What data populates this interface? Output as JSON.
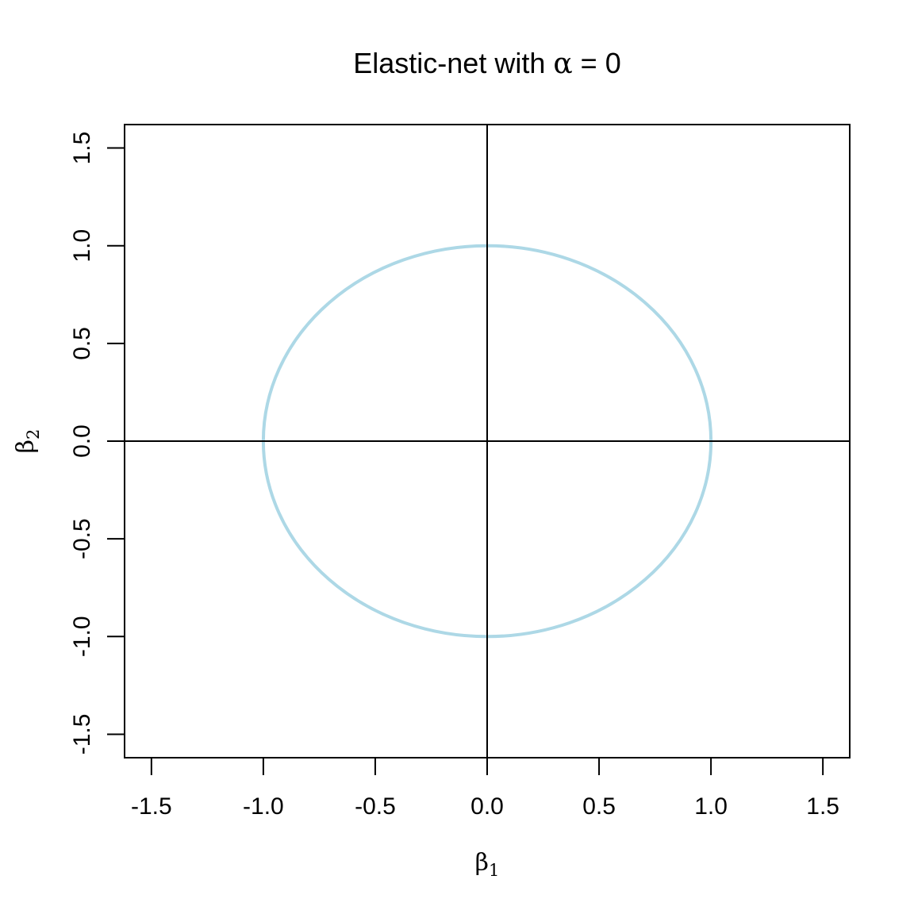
{
  "chart_data": {
    "type": "line",
    "title_prefix": "Elastic-net with ",
    "title_symbol": "α",
    "title_suffix": " = 0",
    "xlabel": {
      "symbol": "β",
      "subscript": "1"
    },
    "ylabel": {
      "symbol": "β",
      "subscript": "2"
    },
    "xlim": [
      -1.62,
      1.62
    ],
    "ylim": [
      -1.62,
      1.62
    ],
    "xticks": [
      -1.5,
      -1.0,
      -0.5,
      0.0,
      0.5,
      1.0,
      1.5
    ],
    "yticks": [
      -1.5,
      -1.0,
      -0.5,
      0.0,
      0.5,
      1.0,
      1.5
    ],
    "xtick_labels": [
      "-1.5",
      "-1.0",
      "-0.5",
      "0.0",
      "0.5",
      "1.0",
      "1.5"
    ],
    "ytick_labels": [
      "-1.5",
      "-1.0",
      "-0.5",
      "0.0",
      "0.5",
      "1.0",
      "1.5"
    ],
    "reference_lines": {
      "vertical_x": 0,
      "horizontal_y": 0,
      "color": "#000000"
    },
    "series": [
      {
        "shape": "unit circle",
        "center": [
          0,
          0
        ],
        "radius": 1.0,
        "color": "#add8e6"
      }
    ],
    "grid": false,
    "legend": "none"
  }
}
